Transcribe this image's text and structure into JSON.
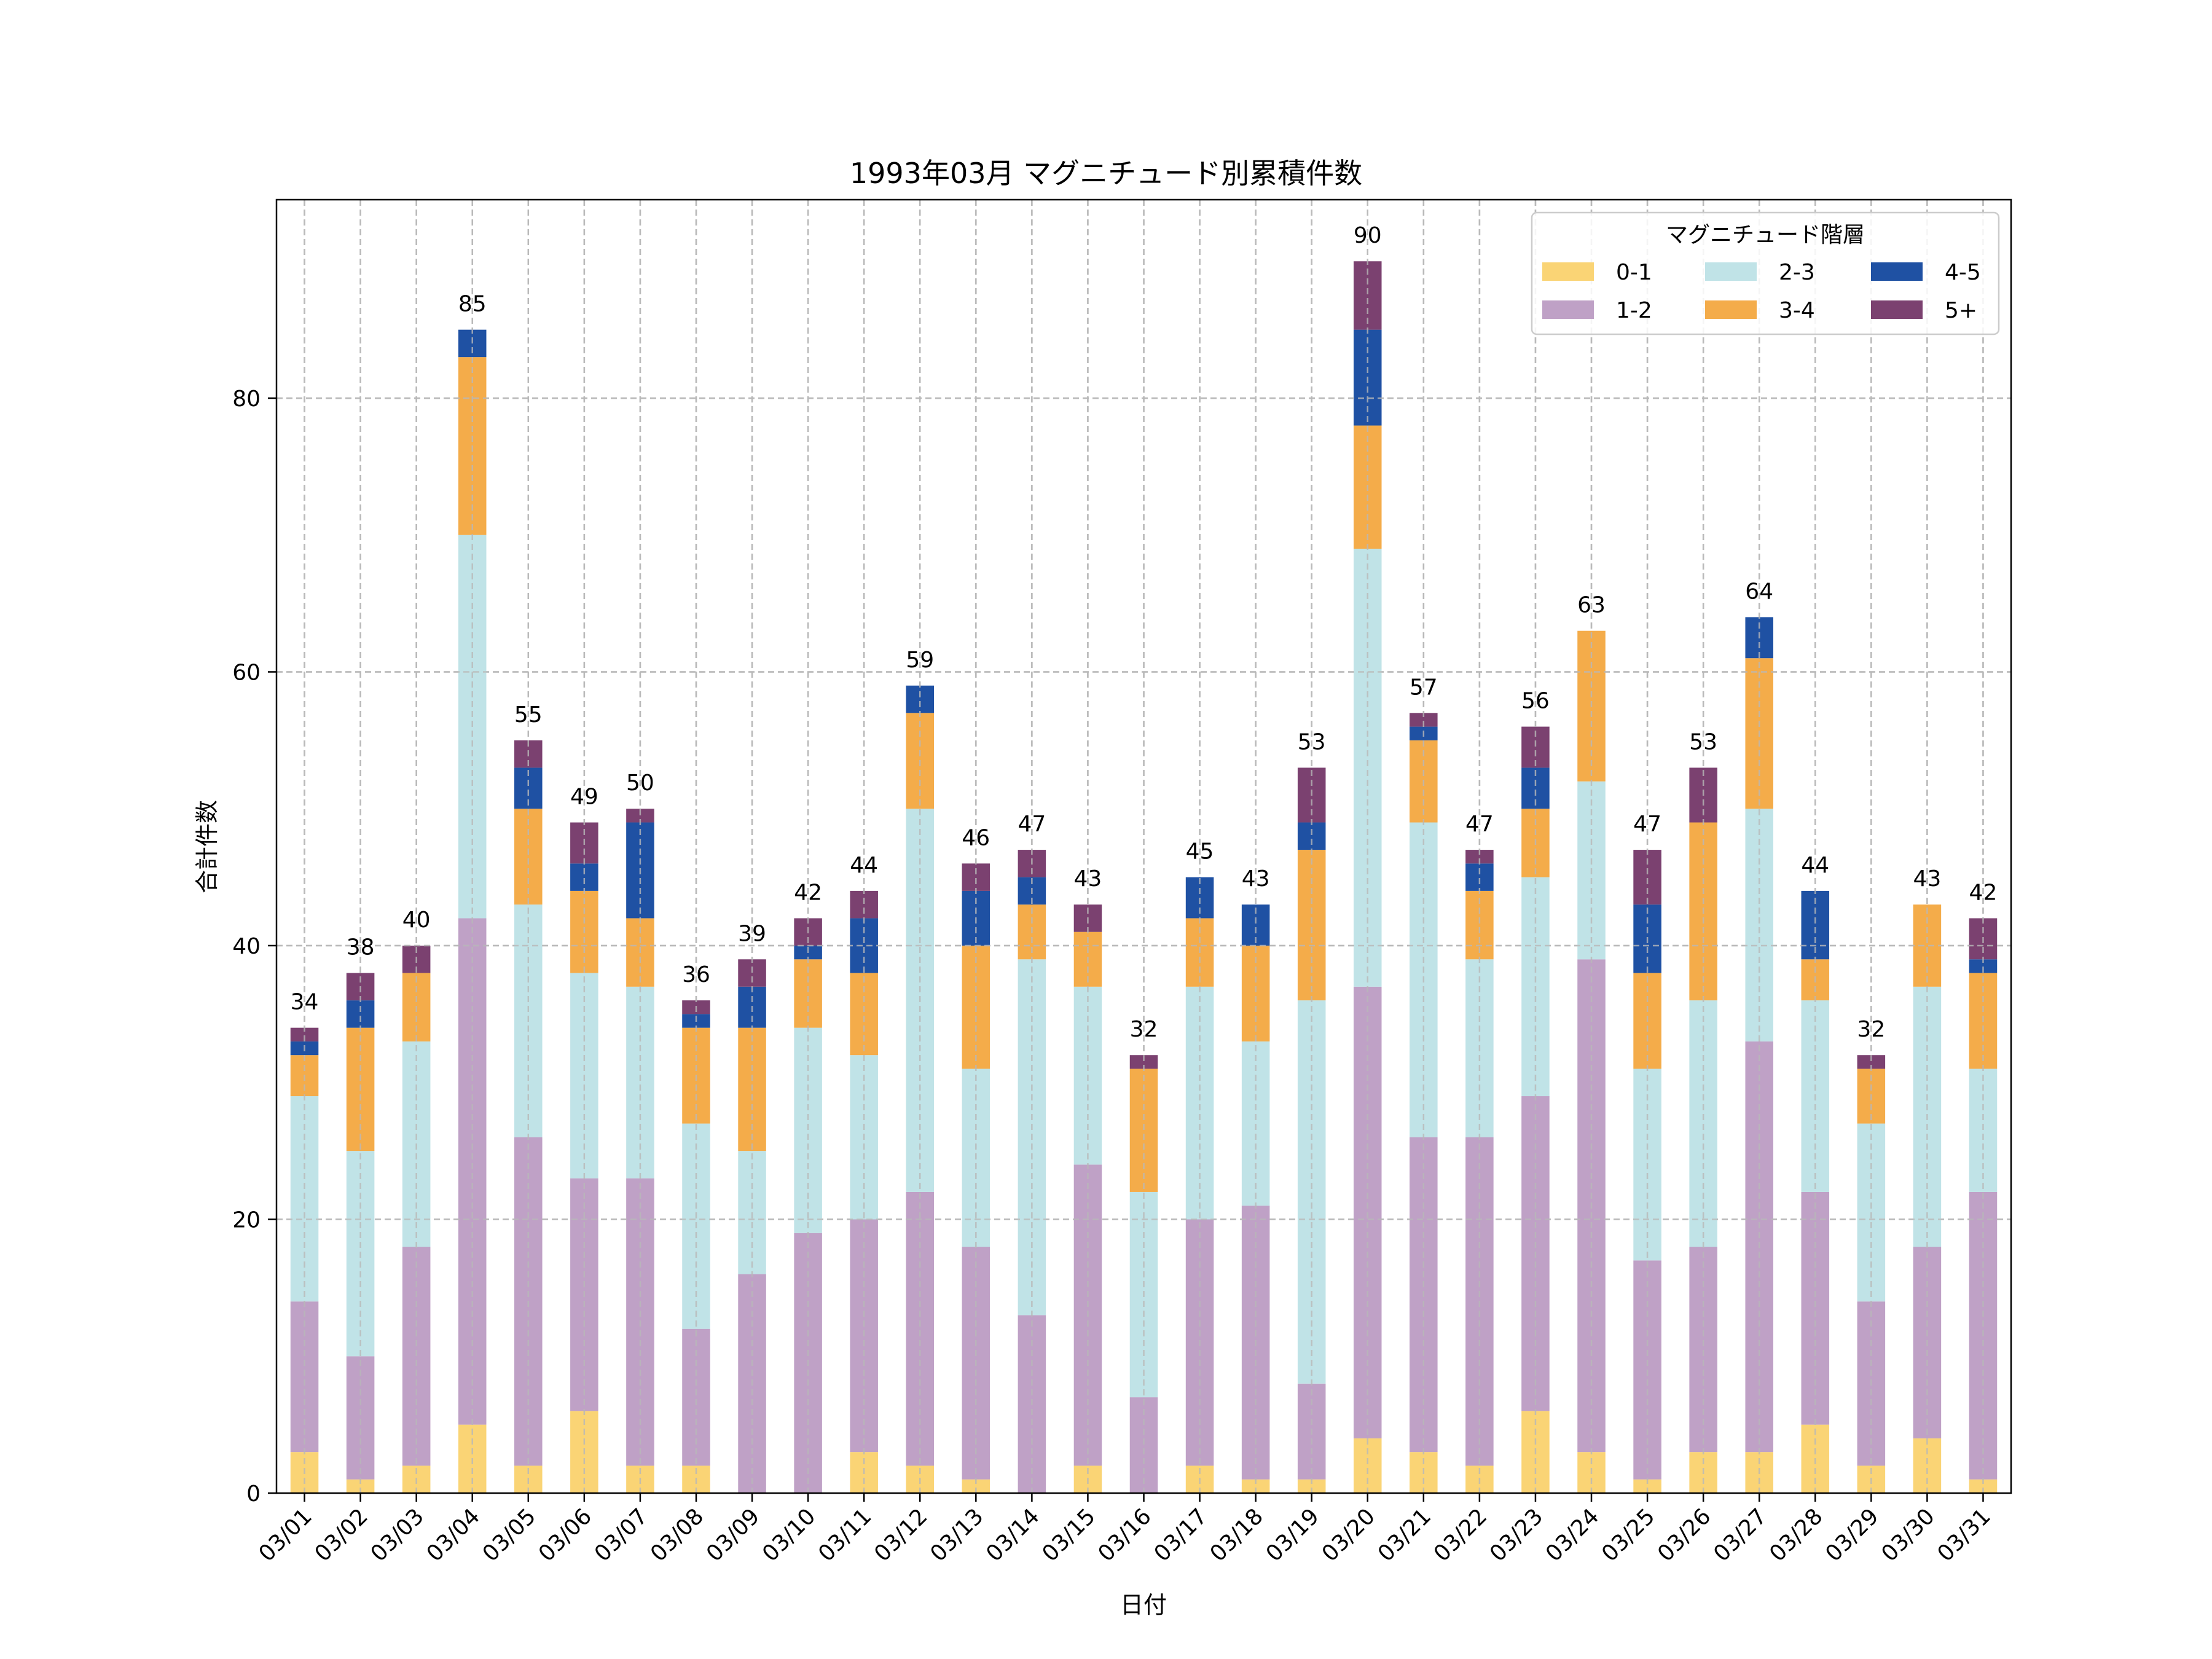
{
  "chart_data": {
    "type": "bar",
    "stacked": true,
    "title": "1993年03月 マグニチュード別累積件数",
    "xlabel": "日付",
    "ylabel": "合計件数",
    "ylim": [
      0,
      94.5
    ],
    "yticks": [
      0,
      20,
      40,
      60,
      80
    ],
    "grid": true,
    "legend": {
      "title": "マグニチュード階層",
      "position": "top-right",
      "columns": 3
    },
    "categories": [
      "03/01",
      "03/02",
      "03/03",
      "03/04",
      "03/05",
      "03/06",
      "03/07",
      "03/08",
      "03/09",
      "03/10",
      "03/11",
      "03/12",
      "03/13",
      "03/14",
      "03/15",
      "03/16",
      "03/17",
      "03/18",
      "03/19",
      "03/20",
      "03/21",
      "03/22",
      "03/23",
      "03/24",
      "03/25",
      "03/26",
      "03/27",
      "03/28",
      "03/29",
      "03/30",
      "03/31"
    ],
    "series": [
      {
        "name": "0-1",
        "color": "#FAD475",
        "values": [
          3,
          1,
          2,
          5,
          2,
          6,
          2,
          2,
          0,
          0,
          3,
          2,
          1,
          0,
          2,
          0,
          2,
          1,
          1,
          4,
          3,
          2,
          6,
          3,
          1,
          3,
          3,
          5,
          2,
          4,
          1
        ]
      },
      {
        "name": "1-2",
        "color": "#BFA1C6",
        "values": [
          11,
          9,
          16,
          37,
          24,
          17,
          21,
          10,
          16,
          19,
          17,
          20,
          17,
          13,
          22,
          7,
          18,
          20,
          7,
          33,
          23,
          24,
          23,
          36,
          16,
          15,
          30,
          17,
          12,
          14,
          21
        ]
      },
      {
        "name": "2-3",
        "color": "#C0E3E7",
        "values": [
          15,
          15,
          15,
          28,
          17,
          15,
          14,
          15,
          9,
          15,
          12,
          28,
          13,
          26,
          13,
          15,
          17,
          12,
          28,
          32,
          23,
          13,
          16,
          13,
          14,
          18,
          17,
          14,
          13,
          19,
          9
        ]
      },
      {
        "name": "3-4",
        "color": "#F4AC4A",
        "values": [
          3,
          9,
          5,
          13,
          7,
          6,
          5,
          7,
          9,
          5,
          6,
          7,
          9,
          4,
          4,
          9,
          5,
          7,
          11,
          9,
          6,
          5,
          5,
          11,
          7,
          13,
          11,
          3,
          4,
          6,
          7
        ]
      },
      {
        "name": "4-5",
        "color": "#1F51A3",
        "values": [
          1,
          2,
          0,
          2,
          3,
          2,
          7,
          1,
          3,
          1,
          4,
          2,
          4,
          2,
          0,
          0,
          3,
          3,
          2,
          7,
          1,
          2,
          3,
          0,
          5,
          0,
          3,
          5,
          0,
          0,
          1
        ]
      },
      {
        "name": "5+",
        "color": "#7B4170",
        "values": [
          1,
          2,
          2,
          0,
          2,
          3,
          1,
          1,
          2,
          2,
          2,
          0,
          2,
          2,
          2,
          1,
          0,
          0,
          4,
          5,
          1,
          1,
          3,
          0,
          4,
          4,
          0,
          0,
          1,
          0,
          3
        ]
      }
    ],
    "totals": [
      34,
      38,
      40,
      85,
      55,
      49,
      50,
      36,
      39,
      42,
      44,
      59,
      46,
      47,
      43,
      32,
      45,
      43,
      53,
      90,
      57,
      47,
      56,
      63,
      47,
      53,
      64,
      44,
      32,
      43,
      42
    ]
  }
}
